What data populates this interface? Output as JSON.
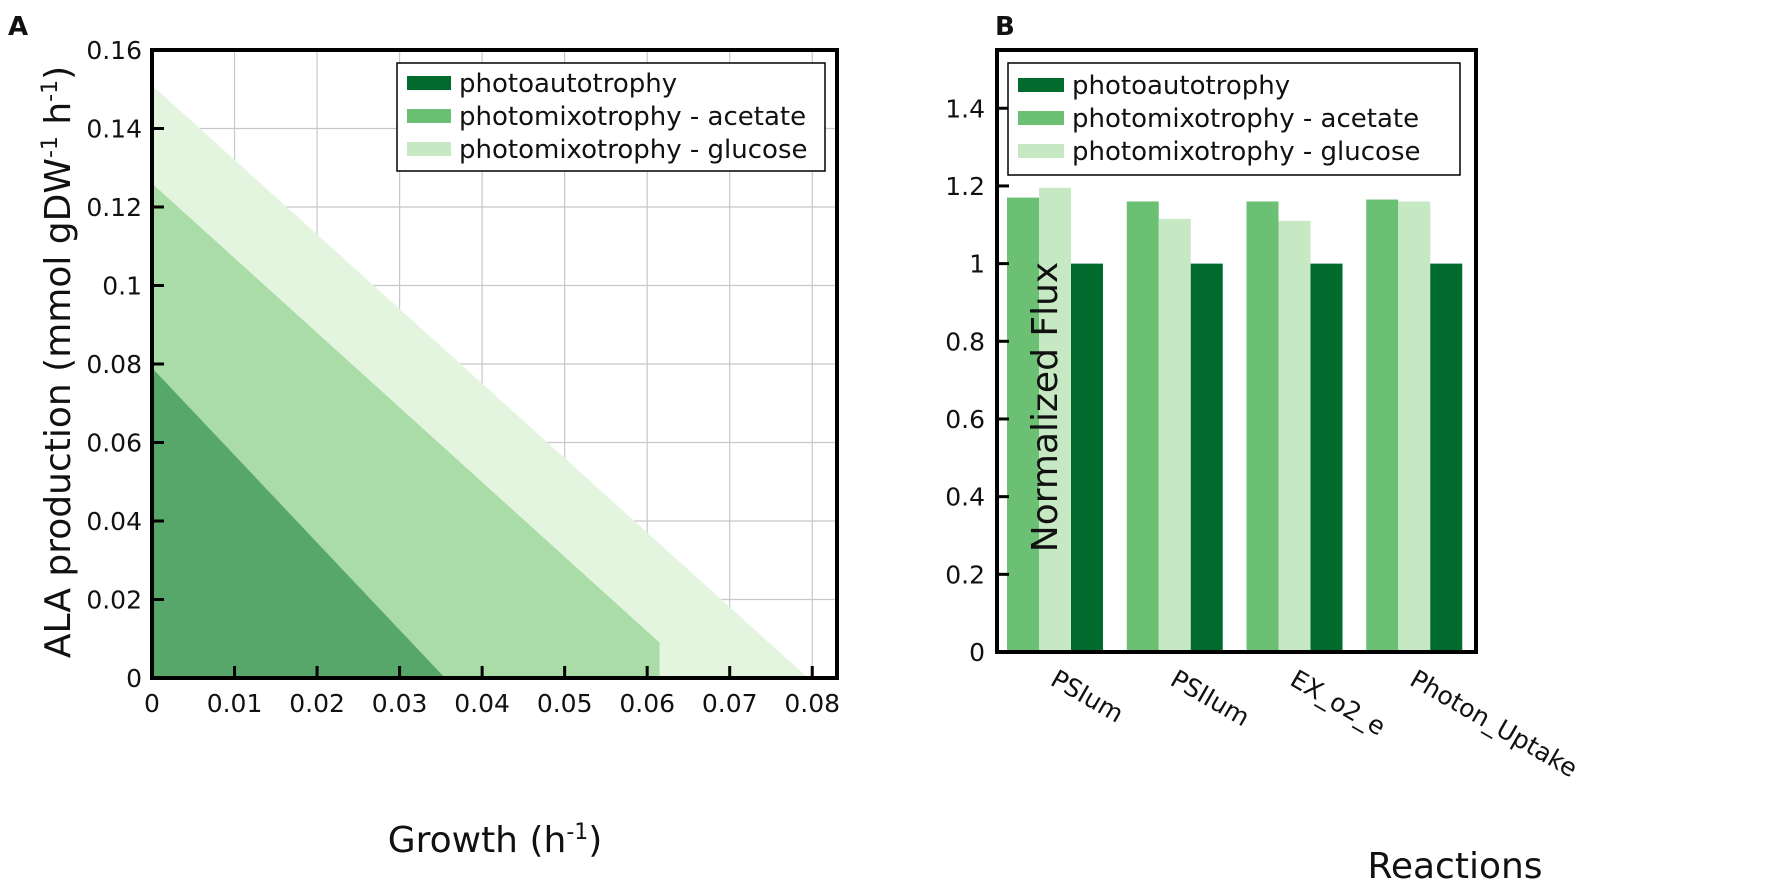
{
  "colors": {
    "autotrophy_bar": "#006b2d",
    "acetate_bar": "#6cc073",
    "glucose_bar": "#c6e8c2",
    "autotrophy_area": "#57a66a",
    "acetate_area": "#a9dca7",
    "glucose_area": "#e3f4df",
    "grid": "#c8c8c8"
  },
  "chart_data": [
    {
      "panel": "A",
      "type": "area",
      "xlabel_main": "Growth (h",
      "xlabel_sup": "-1",
      "xlabel_end": ")",
      "ylabel_main": "ALA production (mmol gDW",
      "ylabel_sup1": "-1",
      "ylabel_mid": " h",
      "ylabel_sup2": "-1",
      "ylabel_end": ")",
      "xlim": [
        0,
        0.083
      ],
      "ylim": [
        0,
        0.16
      ],
      "xticks": [
        0,
        0.01,
        0.02,
        0.03,
        0.04,
        0.05,
        0.06,
        0.07,
        0.08
      ],
      "xtick_labels": [
        "0",
        "0.01",
        "0.02",
        "0.03",
        "0.04",
        "0.05",
        "0.06",
        "0.07",
        "0.08"
      ],
      "yticks": [
        0,
        0.02,
        0.04,
        0.06,
        0.08,
        0.1,
        0.12,
        0.14,
        0.16
      ],
      "ytick_labels": [
        "0",
        "0.02",
        "0.04",
        "0.06",
        "0.08",
        "0.1",
        "0.12",
        "0.14",
        "0.16"
      ],
      "grid": true,
      "legend_position": "top-right",
      "series": [
        {
          "name": "photomixotrophy - glucose",
          "color_key": "glucose_area",
          "x": [
            0,
            0,
            0.0795,
            0.0795
          ],
          "y": [
            0,
            0.151,
            0.0,
            0
          ]
        },
        {
          "name": "photomixotrophy - acetate",
          "color_key": "acetate_area",
          "x": [
            0,
            0,
            0.0615,
            0.0615
          ],
          "y": [
            0,
            0.126,
            0.009,
            0
          ]
        },
        {
          "name": "photoautotrophy",
          "color_key": "autotrophy_area",
          "x": [
            0,
            0,
            0.0355
          ],
          "y": [
            0,
            0.079,
            0
          ]
        }
      ],
      "legend": [
        {
          "label": "photoautotrophy",
          "color_key": "autotrophy_bar"
        },
        {
          "label": "photomixotrophy - acetate",
          "color_key": "acetate_bar"
        },
        {
          "label": "photomixotrophy - glucose",
          "color_key": "glucose_bar"
        }
      ]
    },
    {
      "panel": "B",
      "type": "bar",
      "xlabel": "Reactions",
      "ylabel": "Normalized Flux",
      "ylim": [
        0,
        1.55
      ],
      "yticks": [
        0,
        0.2,
        0.4,
        0.6,
        0.8,
        1,
        1.2,
        1.4
      ],
      "ytick_labels": [
        "0",
        "0.2",
        "0.4",
        "0.6",
        "0.8",
        "1",
        "1.2",
        "1.4"
      ],
      "categories": [
        "PSIum",
        "PSIIum",
        "EX_o2_e",
        "Photon_Uptake"
      ],
      "legend_position": "top-right",
      "series": [
        {
          "name": "photomixotrophy - acetate",
          "color_key": "acetate_bar",
          "values": [
            1.17,
            1.16,
            1.16,
            1.165
          ]
        },
        {
          "name": "photomixotrophy - glucose",
          "color_key": "glucose_bar",
          "values": [
            1.195,
            1.115,
            1.11,
            1.16
          ]
        },
        {
          "name": "photoautotrophy",
          "color_key": "autotrophy_bar",
          "values": [
            1.0,
            1.0,
            1.0,
            1.0
          ]
        }
      ],
      "legend": [
        {
          "label": "photoautotrophy",
          "color_key": "autotrophy_bar"
        },
        {
          "label": "photomixotrophy - acetate",
          "color_key": "acetate_bar"
        },
        {
          "label": "photomixotrophy - glucose",
          "color_key": "glucose_bar"
        }
      ]
    }
  ]
}
